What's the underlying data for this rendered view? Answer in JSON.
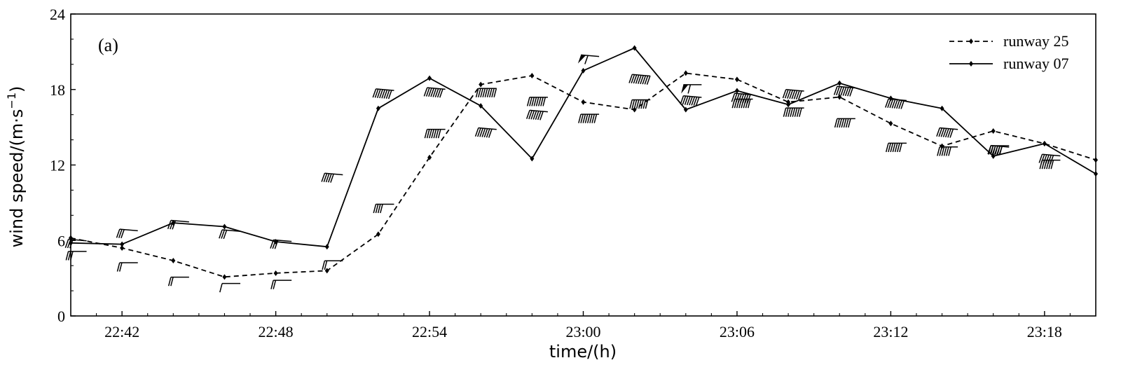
{
  "chart_data": {
    "type": "line",
    "panel_label": "(a)",
    "xlabel": "time/(h)",
    "ylabel_main": "wind speed/(m·s",
    "ylabel_sup": "−1",
    "ylabel_close": ")",
    "xlim": [
      40,
      80
    ],
    "ylim": [
      0,
      24
    ],
    "x_ticks": [
      {
        "value": 42,
        "label": "22:42"
      },
      {
        "value": 48,
        "label": "22:48"
      },
      {
        "value": 54,
        "label": "22:54"
      },
      {
        "value": 60,
        "label": "23:00"
      },
      {
        "value": 66,
        "label": "23:06"
      },
      {
        "value": 72,
        "label": "23:12"
      },
      {
        "value": 78,
        "label": "23:18"
      }
    ],
    "y_ticks": [
      {
        "value": 0,
        "label": "0"
      },
      {
        "value": 6,
        "label": "6"
      },
      {
        "value": 12,
        "label": "12"
      },
      {
        "value": 18,
        "label": "18"
      },
      {
        "value": 24,
        "label": "24"
      }
    ],
    "series": [
      {
        "name": "runway 25",
        "style": "dashed",
        "x": [
          40,
          42,
          44,
          46,
          48,
          50,
          52,
          54,
          56,
          58,
          60,
          62,
          64,
          66,
          68,
          70,
          72,
          74,
          76,
          78,
          80
        ],
        "values": [
          6.2,
          5.4,
          4.4,
          3.1,
          3.4,
          3.6,
          6.5,
          12.6,
          18.4,
          19.1,
          17.0,
          16.4,
          19.3,
          18.8,
          17.0,
          17.4,
          15.3,
          13.5,
          14.7,
          13.7,
          12.4
        ]
      },
      {
        "name": "runway 07",
        "style": "solid",
        "x": [
          40,
          42,
          44,
          46,
          48,
          50,
          52,
          54,
          56,
          58,
          60,
          62,
          64,
          66,
          68,
          70,
          72,
          74,
          76,
          78,
          80
        ],
        "values": [
          5.8,
          5.7,
          7.4,
          7.1,
          5.9,
          5.5,
          16.5,
          18.9,
          16.7,
          12.5,
          19.5,
          21.3,
          16.4,
          17.9,
          16.8,
          18.5,
          17.3,
          16.5,
          12.7,
          13.7,
          11.3
        ]
      }
    ],
    "legend_position": "top-right",
    "annotations": "wind barbs drawn at each observation point"
  }
}
